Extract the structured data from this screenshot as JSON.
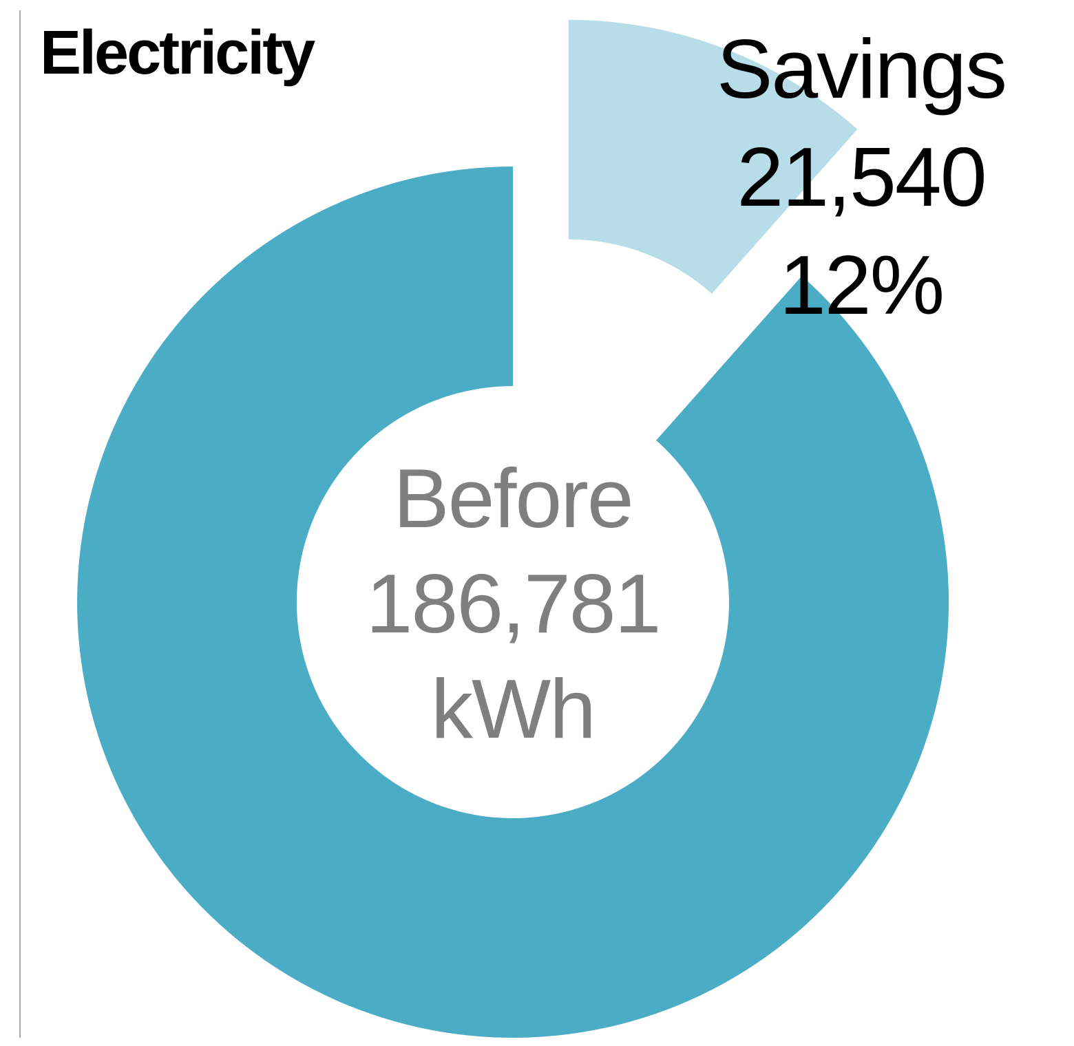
{
  "title": {
    "text": "Electricity"
  },
  "annotation": {
    "line1": "Savings",
    "line2": "21,540",
    "line3": "12%"
  },
  "center_label": {
    "line1": "Before",
    "line2": "186,781",
    "line3": "kWh"
  },
  "text_colors": {
    "title": "#000000",
    "annotation": "#000000",
    "center": "#7f7f7f"
  },
  "chart_data": {
    "type": "pie",
    "donut": true,
    "title": "Electricity",
    "categories": [
      "Savings",
      "Before (remaining)"
    ],
    "values": [
      21540,
      165241
    ],
    "total": 186781,
    "total_label": "Before",
    "total_value_label": "186,781",
    "unit": "kWh",
    "percent_label": "12%",
    "savings_value_label": "21,540",
    "colors": [
      "#B7DDE8",
      "#4AACC5"
    ],
    "exploded": [
      true,
      false
    ],
    "start_angle_deg": 0,
    "legend": "none",
    "slice_labels": [
      "Savings 21,540 12%",
      ""
    ]
  }
}
